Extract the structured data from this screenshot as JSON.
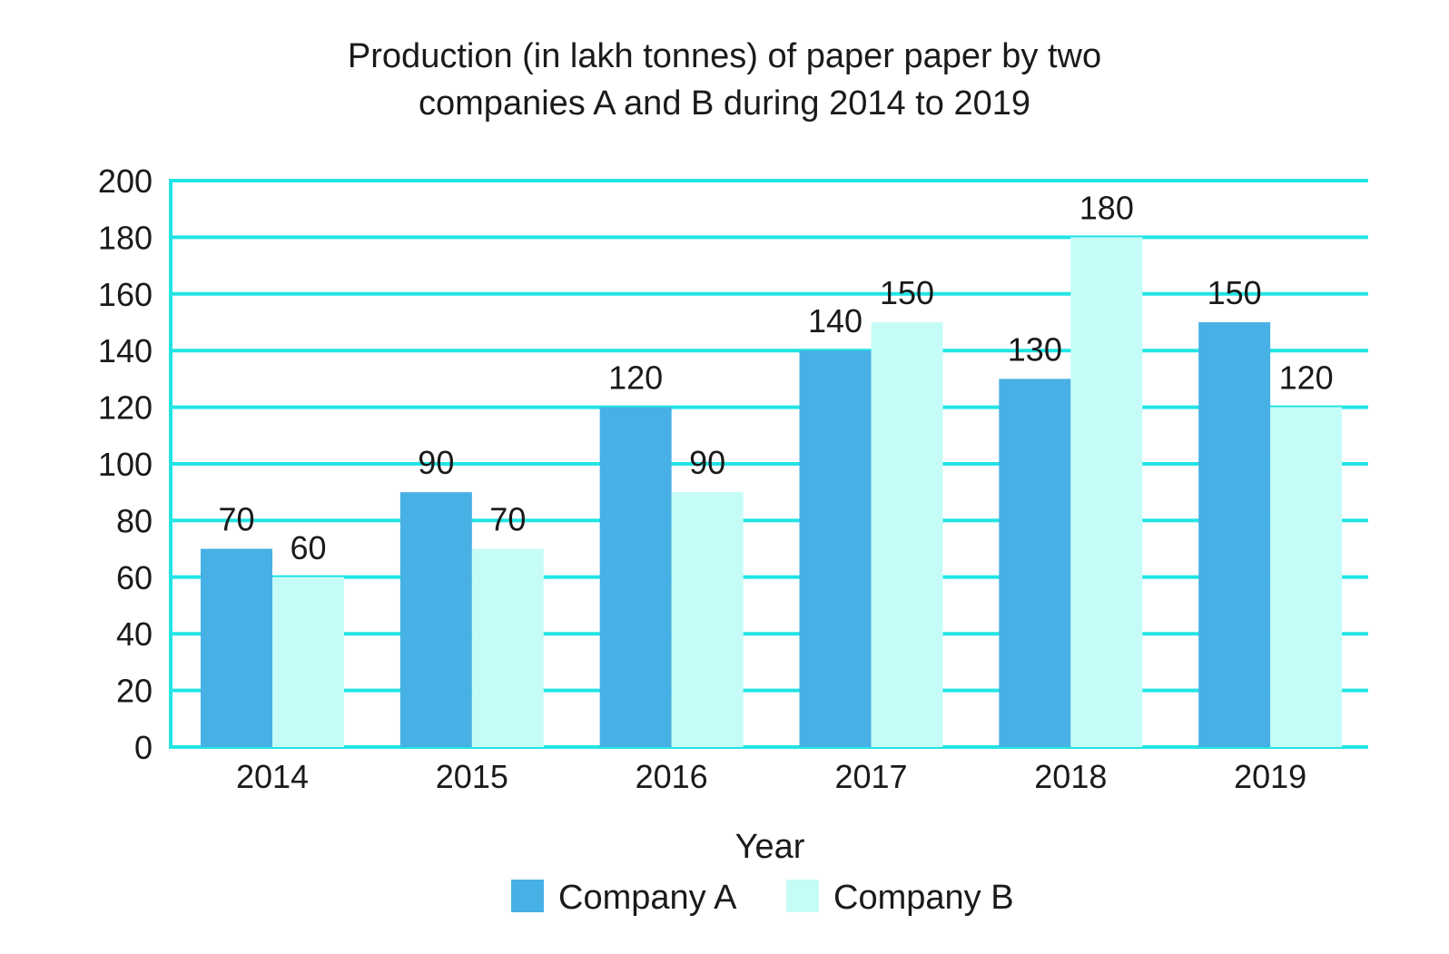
{
  "chart_data": {
    "type": "bar",
    "title_lines": [
      "Production (in lakh tonnes) of paper paper by two",
      "companies A and B during 2014 to 2019"
    ],
    "xlabel": "Year",
    "ylabel": "",
    "ylim": [
      0,
      200
    ],
    "yticks": [
      "0",
      "20",
      "40",
      "60",
      "80",
      "100",
      "120",
      "140",
      "160",
      "180",
      "200"
    ],
    "categories": [
      "2014",
      "2015",
      "2016",
      "2017",
      "2018",
      "2019"
    ],
    "series": [
      {
        "name": "Company A",
        "color": "#47b0e4",
        "values": [
          70,
          90,
          120,
          140,
          130,
          150
        ]
      },
      {
        "name": "Company B",
        "color": "#c6fcf8",
        "values": [
          60,
          70,
          90,
          150,
          180,
          120
        ]
      }
    ],
    "grid": true,
    "grid_color": "#22e4e4",
    "legend_position": "bottom"
  }
}
